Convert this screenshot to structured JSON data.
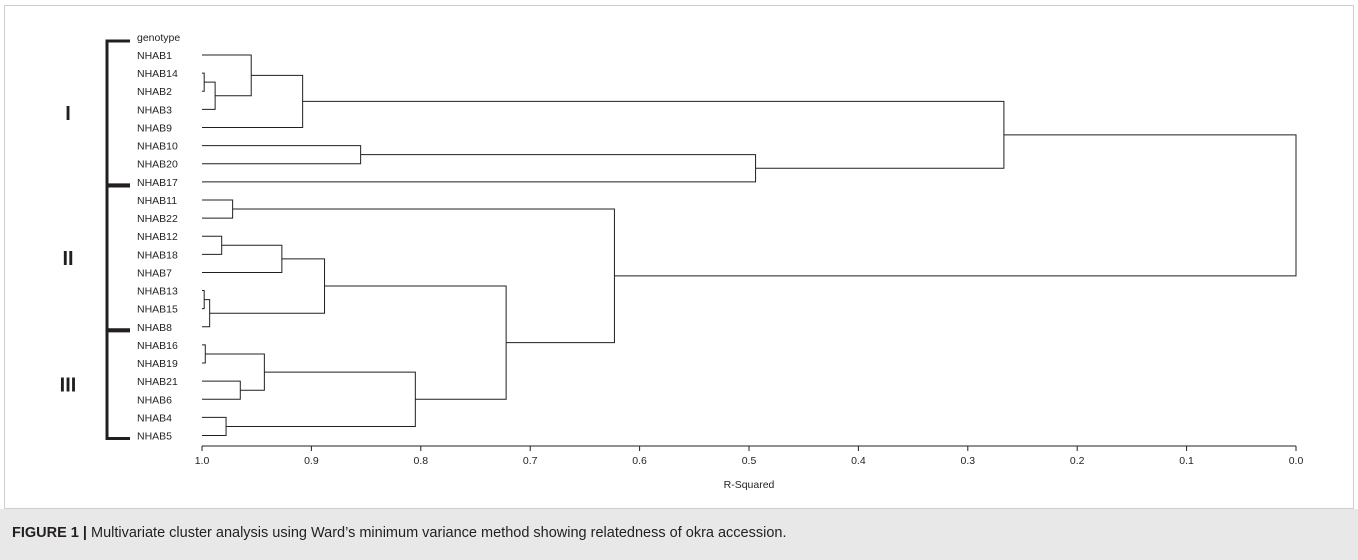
{
  "chart_data": {
    "type": "dendrogram",
    "header_label": "genotype",
    "leaves": [
      "NHAB1",
      "NHAB14",
      "NHAB2",
      "NHAB3",
      "NHAB9",
      "NHAB10",
      "NHAB20",
      "NHAB17",
      "NHAB11",
      "NHAB22",
      "NHAB12",
      "NHAB18",
      "NHAB7",
      "NHAB13",
      "NHAB15",
      "NHAB8",
      "NHAB16",
      "NHAB19",
      "NHAB21",
      "NHAB6",
      "NHAB4",
      "NHAB5"
    ],
    "merges": [
      {
        "a": "NHAB14",
        "b": "NHAB2",
        "r2": 0.998
      },
      {
        "a": "NHAB13",
        "b": "NHAB15",
        "r2": 0.998
      },
      {
        "a": "NHAB16",
        "b": "NHAB19",
        "r2": 0.997
      },
      {
        "a": "m1",
        "b": "NHAB3",
        "r2": 0.988
      },
      {
        "a": "m2",
        "b": "NHAB8",
        "r2": 0.993
      },
      {
        "a": "NHAB12",
        "b": "NHAB18",
        "r2": 0.982
      },
      {
        "a": "NHAB4",
        "b": "NHAB5",
        "r2": 0.978
      },
      {
        "a": "NHAB11",
        "b": "NHAB22",
        "r2": 0.972
      },
      {
        "a": "NHAB21",
        "b": "NHAB6",
        "r2": 0.965
      },
      {
        "a": "NHAB1",
        "b": "m4",
        "r2": 0.955
      },
      {
        "a": "m3",
        "b": "m9",
        "r2": 0.943
      },
      {
        "a": "m6",
        "b": "NHAB7",
        "r2": 0.927
      },
      {
        "a": "m10",
        "b": "NHAB9",
        "r2": 0.908
      },
      {
        "a": "m12",
        "b": "m5",
        "r2": 0.888
      },
      {
        "a": "NHAB10",
        "b": "NHAB20",
        "r2": 0.855
      },
      {
        "a": "m11",
        "b": "m7",
        "r2": 0.805
      },
      {
        "a": "m14",
        "b": "m16",
        "r2": 0.722
      },
      {
        "a": "m8",
        "b": "m17",
        "r2": 0.623
      },
      {
        "a": "m15",
        "b": "NHAB17",
        "r2": 0.494
      },
      {
        "a": "m13",
        "b": "m19",
        "r2": 0.267
      },
      {
        "a": "m20",
        "b": "m18",
        "r2": 0.0
      }
    ],
    "xlabel": "R-Squared",
    "xlim": [
      1.0,
      0.0
    ],
    "ticks": [
      "1.0",
      "0.9",
      "0.8",
      "0.7",
      "0.6",
      "0.5",
      "0.4",
      "0.3",
      "0.2",
      "0.1",
      "0.0"
    ],
    "groups": [
      {
        "label": "I",
        "first": "NHAB1",
        "last": "NHAB17"
      },
      {
        "label": "II",
        "first": "NHAB11",
        "last": "NHAB8"
      },
      {
        "label": "III",
        "first": "NHAB16",
        "last": "NHAB5"
      }
    ]
  },
  "caption": {
    "label": "FIGURE 1 |",
    "text": " Multivariate cluster analysis using Ward’s minimum variance method showing relatedness of okra accession."
  }
}
